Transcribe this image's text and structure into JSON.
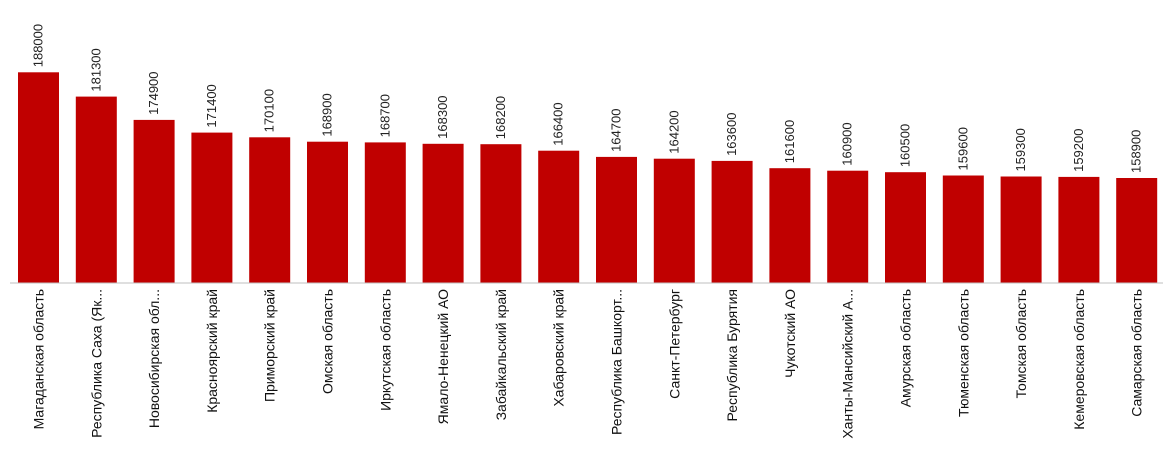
{
  "colors": {
    "bar": "#c00000",
    "axis": "#bfbfbf",
    "text": "#222222"
  },
  "chart_data": {
    "type": "bar",
    "title": "",
    "xlabel": "",
    "ylabel": "",
    "legend": "none",
    "grid": false,
    "ylim": [
      130000,
      190000
    ],
    "categories": [
      "Магаданская область",
      "Республика Саха (Як...",
      "Новосибирская обл...",
      "Красноярский край",
      "Приморский край",
      "Омская область",
      "Иркутская область",
      "Ямало-Ненецкий АО",
      "Забайкальский край",
      "Хабаровский край",
      "Республика Башкорт...",
      "Санкт-Петербург",
      "Республика Бурятия",
      "Чукотский АО",
      "Ханты-Мансийский А...",
      "Амурская область",
      "Тюменская область",
      "Томская область",
      "Кемеровская область",
      "Самарская область"
    ],
    "values": [
      188000,
      181300,
      174900,
      171400,
      170100,
      168900,
      168700,
      168300,
      168200,
      166400,
      164700,
      164200,
      163600,
      161600,
      160900,
      160500,
      159600,
      159300,
      159200,
      158900
    ]
  }
}
